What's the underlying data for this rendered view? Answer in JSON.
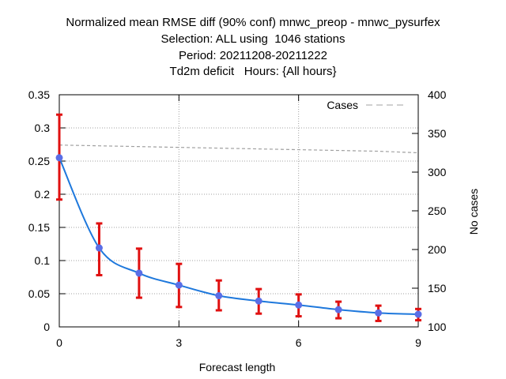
{
  "titles": [
    "Normalized mean RMSE diff (90% conf) mnwc_preop - mnwc_pysurfex",
    "Selection: ALL using  1046 stations",
    "Period: 20211208-20211222",
    "Td2m deficit   Hours: {All hours}"
  ],
  "chart_data": {
    "type": "line",
    "title": "Normalized mean RMSE diff (90% conf) mnwc_preop - mnwc_pysurfex",
    "xlabel": "Forecast length",
    "ylabel": "",
    "y2label": "No cases",
    "xlim": [
      0,
      9
    ],
    "ylim": [
      0,
      0.35
    ],
    "y2lim": [
      100,
      400
    ],
    "x_ticks": [
      0,
      3,
      6,
      9
    ],
    "y_ticks": [
      0,
      0.05,
      0.1,
      0.15,
      0.2,
      0.25,
      0.3,
      0.35
    ],
    "y_tick_labels": [
      "0",
      "0.05",
      "0.1",
      "0.15",
      "0.2",
      "0.25",
      "0.3",
      "0.35"
    ],
    "y2_ticks": [
      100,
      150,
      200,
      250,
      300,
      350,
      400
    ],
    "grid": true,
    "legend": "top-right",
    "series": [
      {
        "name": "",
        "axis": "left",
        "color": "#1e78dc",
        "marker_color": "#5a6ee6",
        "error_color": "#e01010",
        "x": [
          0,
          1,
          2,
          3,
          4,
          5,
          6,
          7,
          8,
          9
        ],
        "values": [
          0.255,
          0.119,
          0.081,
          0.063,
          0.047,
          0.039,
          0.033,
          0.026,
          0.021,
          0.019
        ],
        "err_low": [
          0.192,
          0.078,
          0.044,
          0.03,
          0.025,
          0.02,
          0.016,
          0.013,
          0.009,
          0.01
        ],
        "err_high": [
          0.32,
          0.156,
          0.118,
          0.095,
          0.07,
          0.057,
          0.049,
          0.038,
          0.032,
          0.027
        ]
      },
      {
        "name": "Cases",
        "axis": "right",
        "color": "#a0a0a0",
        "style": "dashed",
        "x": [
          0,
          1,
          2,
          3,
          4,
          5,
          6,
          7,
          8,
          9
        ],
        "values": [
          335,
          334,
          333,
          332,
          331,
          330,
          329,
          328,
          327,
          325
        ]
      }
    ]
  }
}
